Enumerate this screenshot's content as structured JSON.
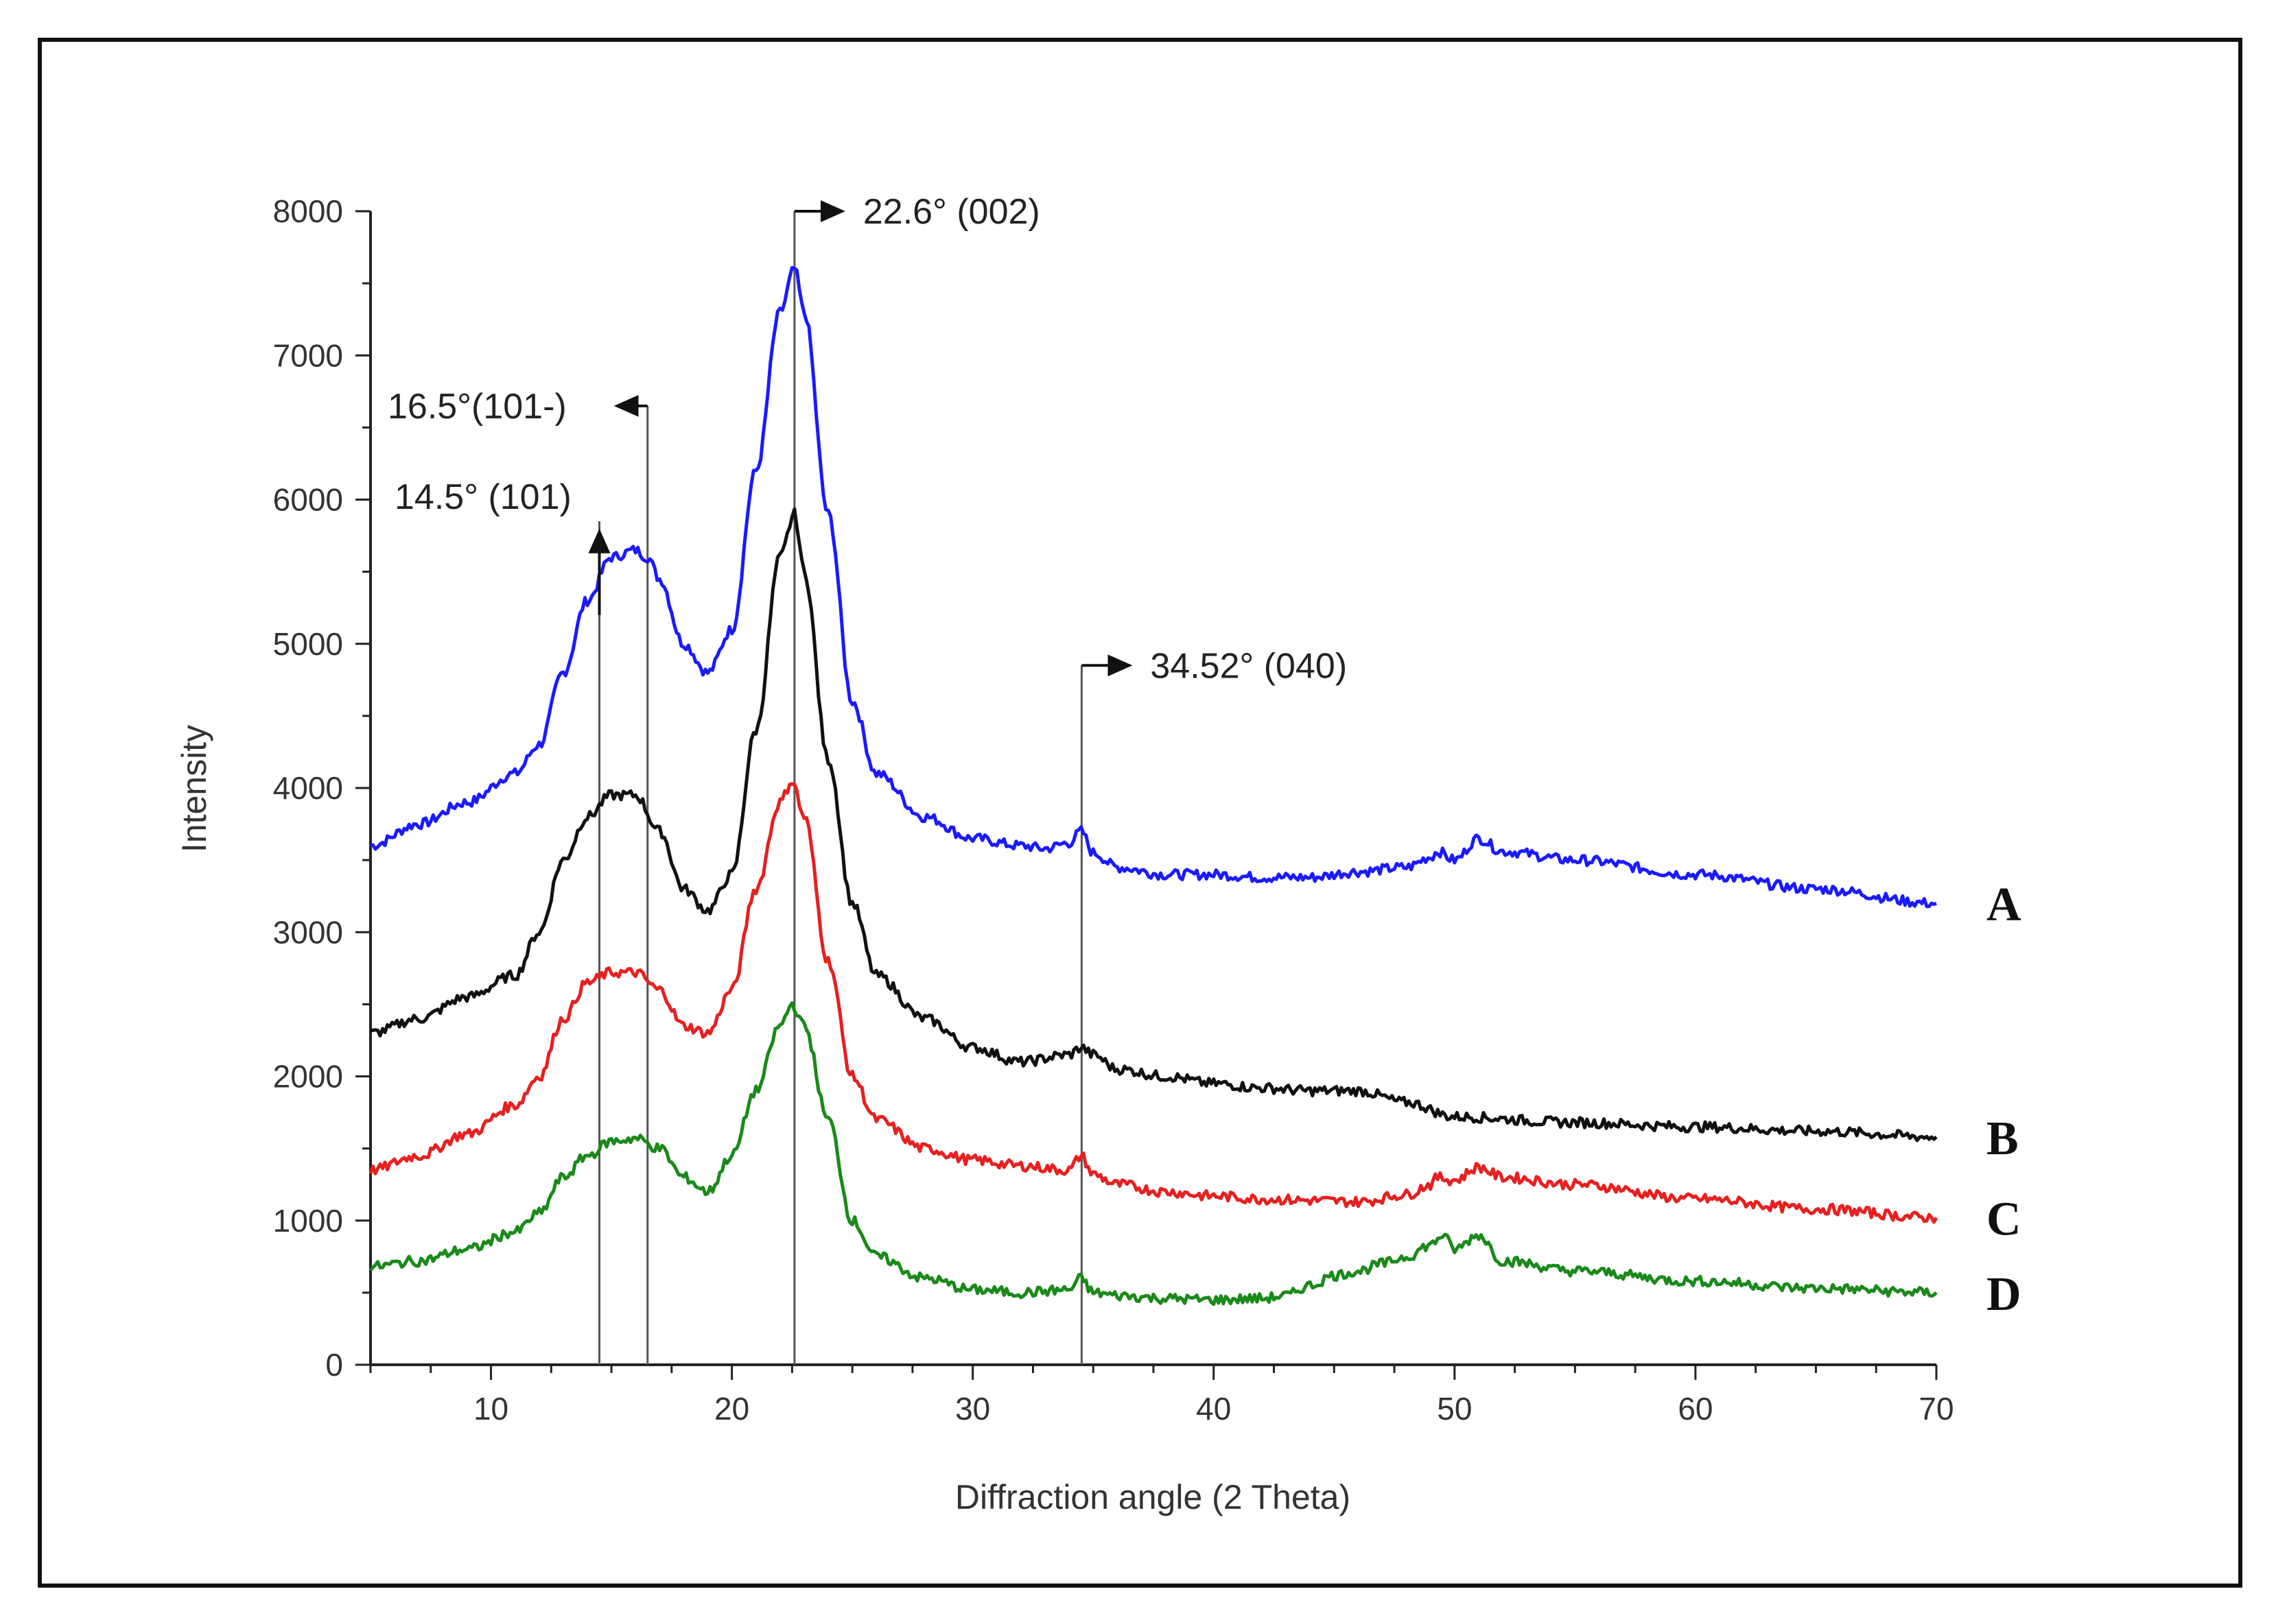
{
  "chart_data": {
    "type": "line",
    "title": "",
    "xlabel": "Diffraction angle (2 Theta)",
    "ylabel": "Intensity",
    "xlim": [
      5,
      70
    ],
    "ylim": [
      0,
      8000
    ],
    "x_ticks": [
      10,
      20,
      30,
      40,
      50,
      60,
      70
    ],
    "y_ticks": [
      0,
      1000,
      2000,
      3000,
      4000,
      5000,
      6000,
      7000,
      8000
    ],
    "grid": false,
    "series": [
      {
        "name": "A",
        "color": "#1a1aff",
        "x": [
          5,
          7,
          9,
          11,
          12,
          13,
          14,
          15,
          16,
          16.5,
          17,
          18,
          19,
          20,
          21,
          22,
          22.6,
          23,
          24,
          25,
          26,
          28,
          30,
          32,
          33,
          34,
          34.5,
          35,
          36,
          38,
          40,
          42,
          44,
          46,
          48,
          49,
          49.3,
          50,
          51,
          52,
          55,
          60,
          65,
          70
        ],
        "values": [
          3600,
          3750,
          3900,
          4100,
          4300,
          4800,
          5300,
          5600,
          5650,
          5600,
          5450,
          5000,
          4800,
          5100,
          6200,
          7300,
          7600,
          7300,
          5900,
          4600,
          4100,
          3800,
          3650,
          3600,
          3580,
          3620,
          3700,
          3550,
          3450,
          3400,
          3400,
          3380,
          3380,
          3420,
          3450,
          3520,
          3560,
          3500,
          3650,
          3560,
          3500,
          3400,
          3300,
          3200
        ]
      },
      {
        "name": "B",
        "color": "#111111",
        "x": [
          5,
          7,
          9,
          11,
          12,
          13,
          14,
          15,
          16,
          17,
          18,
          19,
          20,
          21,
          22,
          22.6,
          23,
          24,
          25,
          26,
          28,
          30,
          32,
          34,
          34.5,
          35,
          36,
          38,
          40,
          42,
          44,
          46,
          48,
          50,
          55,
          60,
          65,
          70
        ],
        "values": [
          2300,
          2400,
          2550,
          2700,
          3000,
          3500,
          3800,
          3950,
          3950,
          3700,
          3300,
          3150,
          3400,
          4400,
          5600,
          5900,
          5500,
          4200,
          3200,
          2700,
          2400,
          2200,
          2100,
          2150,
          2200,
          2150,
          2050,
          2000,
          1950,
          1920,
          1900,
          1900,
          1820,
          1720,
          1680,
          1650,
          1620,
          1580
        ]
      },
      {
        "name": "C",
        "color": "#e62020",
        "x": [
          5,
          7,
          9,
          11,
          12,
          13,
          14,
          15,
          16,
          17,
          18,
          19,
          20,
          21,
          22,
          22.5,
          23,
          24,
          25,
          26,
          28,
          30,
          32,
          34,
          34.5,
          35,
          36,
          38,
          40,
          42,
          44,
          46,
          48,
          49,
          49.3,
          50,
          51,
          52,
          55,
          60,
          65,
          70
        ],
        "values": [
          1350,
          1450,
          1600,
          1800,
          2000,
          2400,
          2650,
          2720,
          2720,
          2600,
          2350,
          2300,
          2600,
          3300,
          3900,
          4050,
          3800,
          2800,
          2000,
          1700,
          1500,
          1420,
          1380,
          1350,
          1450,
          1320,
          1250,
          1200,
          1170,
          1150,
          1140,
          1130,
          1180,
          1250,
          1300,
          1280,
          1370,
          1300,
          1250,
          1150,
          1080,
          1020
        ]
      },
      {
        "name": "D",
        "color": "#1a8a1a",
        "x": [
          5,
          7,
          9,
          11,
          12,
          13,
          14,
          15,
          16,
          17,
          18,
          19,
          20,
          21,
          22,
          22.5,
          23,
          24,
          25,
          26,
          28,
          30,
          32,
          34,
          34.5,
          35,
          36,
          38,
          40,
          42,
          43,
          44,
          45,
          46,
          47,
          48,
          49,
          49.5,
          50,
          51,
          52,
          55,
          60,
          65,
          70
        ],
        "values": [
          680,
          720,
          800,
          920,
          1050,
          1300,
          1450,
          1550,
          1570,
          1500,
          1300,
          1200,
          1450,
          1900,
          2350,
          2500,
          2350,
          1700,
          1000,
          750,
          600,
          520,
          500,
          520,
          600,
          500,
          480,
          460,
          450,
          460,
          480,
          550,
          620,
          650,
          700,
          750,
          830,
          900,
          800,
          900,
          720,
          650,
          580,
          530,
          500
        ]
      }
    ],
    "annotations": [
      {
        "text": "14.5° (101)",
        "x": 14.5
      },
      {
        "text": "16.5°(101-)",
        "x": 16.5
      },
      {
        "text": "22.6°  (002)",
        "x": 22.6
      },
      {
        "text": "34.52° (040)",
        "x": 34.52
      }
    ]
  }
}
